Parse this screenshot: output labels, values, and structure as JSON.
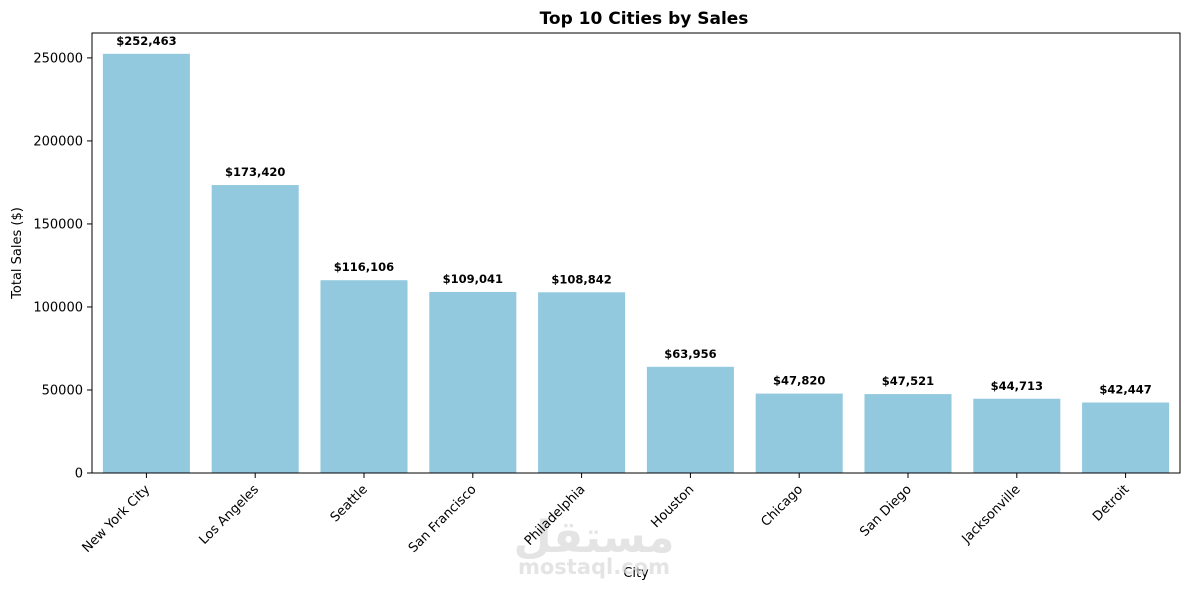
{
  "watermark": {
    "arabic": "مستقل",
    "latin": "mostaql.com"
  },
  "chart_data": {
    "type": "bar",
    "title": "Top 10 Cities by Sales",
    "xlabel": "City",
    "ylabel": "Total Sales ($)",
    "categories": [
      "New York City",
      "Los Angeles",
      "Seattle",
      "San Francisco",
      "Philadelphia",
      "Houston",
      "Chicago",
      "San Diego",
      "Jacksonville",
      "Detroit"
    ],
    "values": [
      252463,
      173420,
      116106,
      109041,
      108842,
      63956,
      47820,
      47521,
      44713,
      42447
    ],
    "bar_labels": [
      "$252,463",
      "$173,420",
      "$116,106",
      "$109,041",
      "$108,842",
      "$63,956",
      "$47,820",
      "$47,521",
      "$44,713",
      "$42,447"
    ],
    "yticks": [
      0,
      50000,
      100000,
      150000,
      200000,
      250000
    ],
    "ytick_labels": [
      "0",
      "50000",
      "100000",
      "150000",
      "200000",
      "250000"
    ],
    "ylim": [
      0,
      265000
    ],
    "grid": false,
    "bar_color": "#92c9df",
    "x_tick_rotation": 45
  }
}
